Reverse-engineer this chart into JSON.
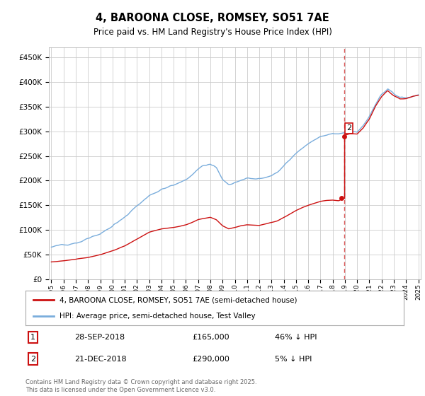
{
  "title": "4, BAROONA CLOSE, ROMSEY, SO51 7AE",
  "subtitle": "Price paid vs. HM Land Registry's House Price Index (HPI)",
  "hpi_label": "HPI: Average price, semi-detached house, Test Valley",
  "property_label": "4, BAROONA CLOSE, ROMSEY, SO51 7AE (semi-detached house)",
  "transaction1": {
    "label": "1",
    "date": "28-SEP-2018",
    "price": "£165,000",
    "hpi_diff": "46% ↓ HPI"
  },
  "transaction2": {
    "label": "2",
    "date": "21-DEC-2018",
    "price": "£290,000",
    "hpi_diff": "5% ↓ HPI"
  },
  "hpi_color": "#7aaddc",
  "property_color": "#cc1111",
  "vline_color": "#cc1111",
  "background_color": "#ffffff",
  "grid_color": "#cccccc",
  "ylim": [
    0,
    470000
  ],
  "yticks": [
    0,
    50000,
    100000,
    150000,
    200000,
    250000,
    300000,
    350000,
    400000,
    450000
  ],
  "footer": "Contains HM Land Registry data © Crown copyright and database right 2025.\nThis data is licensed under the Open Government Licence v3.0.",
  "xstart_year": 1995,
  "xend_year": 2025,
  "t1_year": 2018.708,
  "t1_price": 165000,
  "t2_year": 2018.958,
  "t2_price": 290000
}
